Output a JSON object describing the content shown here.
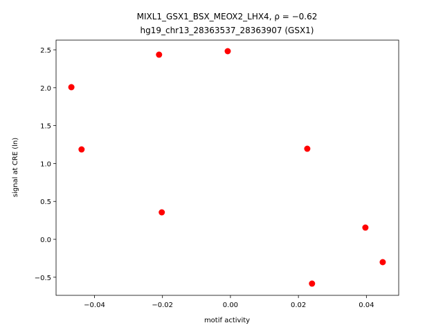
{
  "chart_data": {
    "type": "scatter",
    "title": "MIXL1_GSX1_BSX_MEOX2_LHX4, ρ = −0.62",
    "subtitle": "hg19_chr13_28363537_28363907 (GSX1)",
    "x_label": "motif activity",
    "y_label": "signal at CRE (ln)",
    "color": "#ff0000",
    "x": [
      -0.0468,
      -0.0438,
      -0.021,
      -0.0202,
      -0.0008,
      0.0226,
      0.024,
      0.0397,
      0.0448
    ],
    "values": [
      2.007,
      1.186,
      2.436,
      0.356,
      2.482,
      1.195,
      -0.584,
      0.155,
      -0.301
    ],
    "xlim": [
      -0.0513,
      0.0495
    ],
    "ylim": [
      -0.739,
      2.628
    ],
    "xticks": [
      {
        "value": -0.04,
        "label": "−0.04"
      },
      {
        "value": -0.02,
        "label": "−0.02"
      },
      {
        "value": 0,
        "label": "0.00"
      },
      {
        "value": 0.02,
        "label": "0.02"
      },
      {
        "value": 0.04,
        "label": "0.04"
      }
    ],
    "yticks": [
      {
        "value": -0.5,
        "label": "−0.5"
      },
      {
        "value": 0,
        "label": "0.0"
      },
      0.5,
      {
        "value": 1,
        "label": "1.0"
      },
      1.5,
      {
        "value": 2,
        "label": "2.0"
      },
      2.5
    ]
  }
}
